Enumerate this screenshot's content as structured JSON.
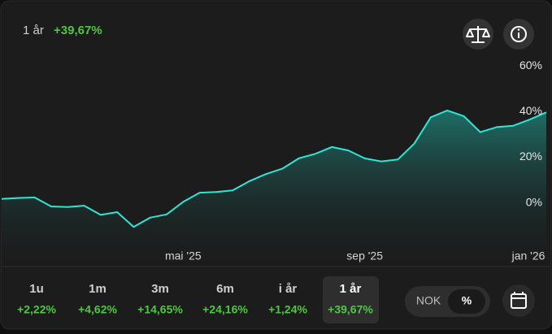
{
  "header": {
    "period": "1 år",
    "change": "+39,67%"
  },
  "chart_data": {
    "type": "line",
    "categories": [
      null,
      null,
      null,
      null,
      null,
      null,
      null,
      null,
      null,
      null,
      null,
      "mai '25",
      null,
      null,
      null,
      null,
      null,
      null,
      null,
      null,
      null,
      null,
      "sep '25",
      null,
      null,
      null,
      null,
      null,
      null,
      null,
      null,
      null,
      "jan '26",
      null
    ],
    "values": [
      1.8,
      2.2,
      2.4,
      -1.5,
      -1.8,
      -1.2,
      -5.2,
      -4.0,
      -10.5,
      -6.4,
      -5.0,
      0.5,
      4.5,
      4.8,
      5.5,
      9.5,
      12.6,
      15.0,
      19.5,
      21.5,
      24.5,
      23.0,
      19.5,
      18.2,
      19.0,
      26.0,
      37.5,
      40.5,
      38.0,
      31.0,
      33.2,
      33.8,
      36.5,
      39.67
    ],
    "color": "#2ee6d6",
    "ylim": [
      -20,
      65
    ],
    "yticks": [
      {
        "value": 0,
        "label": "0%"
      },
      {
        "value": 20,
        "label": "20%"
      },
      {
        "value": 40,
        "label": "40%"
      },
      {
        "value": 60,
        "label": "60%"
      }
    ],
    "grid": false
  },
  "periods": [
    {
      "label": "1u",
      "change": "+2,22%"
    },
    {
      "label": "1m",
      "change": "+4,62%"
    },
    {
      "label": "3m",
      "change": "+14,65%"
    },
    {
      "label": "6m",
      "change": "+24,16%"
    },
    {
      "label": "i år",
      "change": "+1,24%"
    },
    {
      "label": "1 år",
      "change": "+39,67%"
    }
  ],
  "active_period": 5,
  "currency_toggle": {
    "options": [
      "NOK",
      "%"
    ],
    "selected": 1
  }
}
